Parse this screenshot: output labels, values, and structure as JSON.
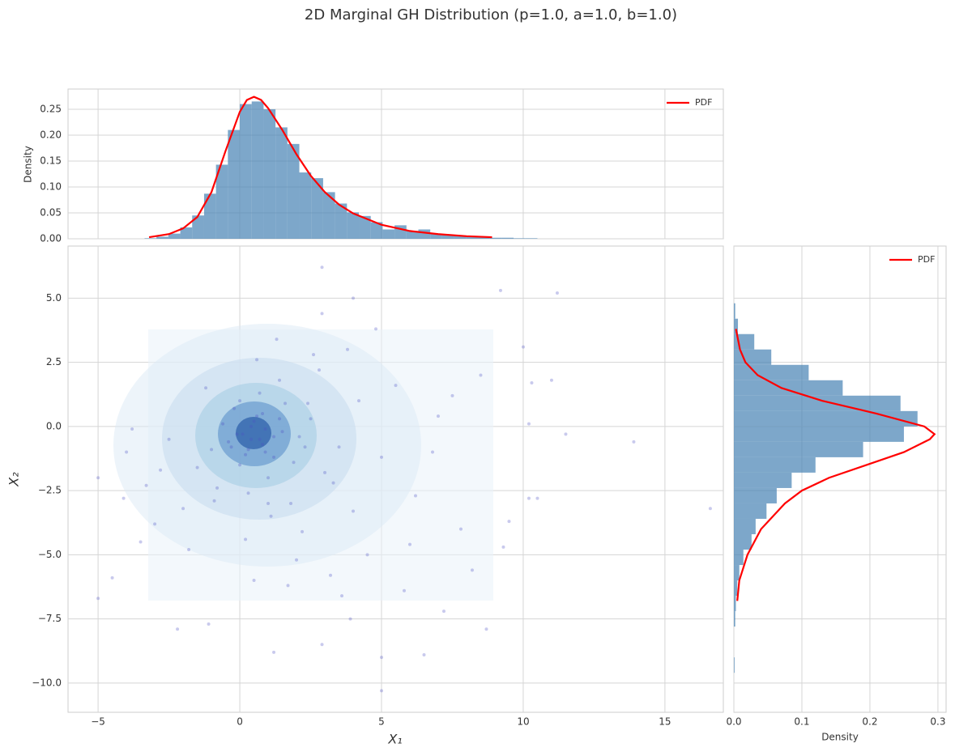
{
  "title": "2D Marginal GH Distribution (p=1.0, a=1.0, b=1.0)",
  "chart_data": [
    {
      "type": "scatter",
      "xlabel": "X₁",
      "ylabel": "X₂",
      "xlim": [
        -6.06,
        17.06
      ],
      "ylim": [
        -11.14,
        7.03
      ],
      "xticks": [
        {
          "value": -5,
          "label": "−5"
        },
        0,
        5,
        10,
        15
      ],
      "yticks": [
        {
          "value": 5,
          "label": "5.0"
        },
        2.5,
        {
          "value": 0,
          "label": "0.0"
        },
        {
          "value": -2.5,
          "label": "−2.5"
        },
        {
          "value": -5,
          "label": "−5.0"
        },
        {
          "value": -7.5,
          "label": "−7.5"
        },
        {
          "value": -10,
          "label": "−10.0"
        }
      ],
      "grid": true,
      "color": "#4b50c4",
      "x": [
        0.1,
        0.5,
        -0.3,
        0.8,
        1.2,
        0.4,
        -0.6,
        1.6,
        2.1,
        0.0,
        0.7,
        1.0,
        -1.0,
        2.5,
        3.0,
        1.4,
        0.3,
        -0.2,
        0.9,
        1.8,
        2.8,
        3.5,
        4.2,
        -1.5,
        0.6,
        1.1,
        -0.8,
        2.2,
        3.8,
        5.0,
        5.5,
        6.2,
        7.0,
        7.8,
        8.5,
        4.5,
        2.0,
        1.3,
        0.2,
        -1.2,
        -2.0,
        -2.5,
        -1.8,
        0.5,
        1.7,
        2.6,
        3.2,
        4.0,
        4.8,
        6.0,
        6.8,
        0.4,
        -0.4,
        1.5,
        0.9,
        0.6,
        0.2,
        1.9,
        2.4,
        3.3,
        -0.9,
        0.0,
        0.8,
        1.2,
        5.8,
        7.5,
        8.2,
        3.6,
        2.9,
        -2.8,
        -3.0,
        1.0,
        0.3,
        -0.1,
        0.7,
        1.4,
        2.3,
        -5.0,
        -5.0,
        -4.5,
        -4.0,
        -3.5,
        -3.3,
        2.9,
        4.0,
        9.2,
        11.2,
        10.0,
        10.3,
        11.0,
        10.2,
        11.5,
        13.9,
        16.6,
        10.5,
        10.2,
        9.5,
        9.3,
        5.0,
        5.0,
        6.5,
        2.9,
        1.2,
        -2.2,
        -1.1,
        8.7,
        7.2,
        3.9,
        -4.1,
        -3.8
      ],
      "y": [
        -0.3,
        0.2,
        -0.8,
        0.5,
        -1.2,
        -0.5,
        0.1,
        0.9,
        -0.4,
        -1.5,
        1.3,
        -2.0,
        -0.9,
        0.3,
        -1.8,
        1.8,
        -2.6,
        0.7,
        -0.1,
        -3.0,
        2.2,
        -0.8,
        1.0,
        -1.6,
        2.6,
        -3.5,
        -2.4,
        -4.1,
        3.0,
        -1.2,
        1.6,
        -2.7,
        0.4,
        -4.0,
        2.0,
        -5.0,
        -5.2,
        3.4,
        -4.4,
        1.5,
        -3.2,
        -0.5,
        -4.8,
        -6.0,
        -6.2,
        2.8,
        -5.8,
        -3.3,
        3.8,
        -4.6,
        -1.0,
        0.0,
        -0.6,
        -0.2,
        -1.0,
        0.4,
        -1.1,
        -1.4,
        0.9,
        -2.2,
        -2.9,
        1.0,
        -0.7,
        -0.4,
        -6.4,
        1.2,
        -5.6,
        -6.6,
        4.4,
        -1.7,
        -3.8,
        -3.0,
        -0.9,
        -0.3,
        -0.5,
        0.3,
        -0.8,
        -2.0,
        -6.7,
        -5.9,
        -1.0,
        -4.5,
        -2.3,
        6.2,
        5.0,
        5.3,
        5.2,
        3.1,
        1.7,
        1.8,
        0.1,
        -0.3,
        -0.6,
        -3.2,
        -2.8,
        -2.8,
        -3.7,
        -4.7,
        -9.0,
        -10.3,
        -8.9,
        -8.5,
        -8.8,
        -7.9,
        -7.7,
        -7.9,
        -7.2,
        -7.5,
        -2.8,
        -0.1
      ]
    },
    {
      "type": "histogram",
      "orientation": "vertical",
      "ylabel": "Density",
      "ylim": [
        0,
        0.289
      ],
      "yticks": [
        {
          "value": 0,
          "label": "0.00"
        },
        0.05,
        {
          "value": 0.1,
          "label": "0.10"
        },
        0.15,
        {
          "value": 0.2,
          "label": "0.20"
        },
        0.25
      ],
      "grid": true,
      "legend": "upper right",
      "color": "#4682b4",
      "bins": [
        -3.36,
        -2.94,
        -2.52,
        -2.1,
        -1.68,
        -1.26,
        -0.84,
        -0.42,
        0,
        0.42,
        0.84,
        1.26,
        1.68,
        2.1,
        2.52,
        2.94,
        3.36,
        3.78,
        4.2,
        4.62,
        5.04,
        5.46,
        5.88,
        6.3,
        6.72,
        7.14,
        7.56,
        7.98,
        8.4,
        8.82,
        9.24,
        9.66,
        10.08,
        10.5
      ],
      "values": [
        0.001,
        0.004,
        0.01,
        0.022,
        0.045,
        0.087,
        0.143,
        0.21,
        0.26,
        0.265,
        0.25,
        0.215,
        0.183,
        0.128,
        0.117,
        0.09,
        0.068,
        0.051,
        0.044,
        0.032,
        0.018,
        0.026,
        0.015,
        0.018,
        0.01,
        0.008,
        0.006,
        0.004,
        0.003,
        0.002,
        0.002,
        0.001,
        0.001
      ],
      "series": [
        {
          "name": "PDF",
          "color": "#ff0000",
          "x": [
            -3.2,
            -2.5,
            -2,
            -1.5,
            -1,
            -0.5,
            0,
            0.25,
            0.5,
            0.75,
            1,
            1.5,
            2,
            2.5,
            3,
            3.5,
            4,
            5,
            6,
            7,
            8,
            8.9
          ],
          "values": [
            0.003,
            0.009,
            0.02,
            0.042,
            0.09,
            0.17,
            0.245,
            0.268,
            0.274,
            0.268,
            0.252,
            0.21,
            0.163,
            0.122,
            0.09,
            0.066,
            0.049,
            0.027,
            0.015,
            0.009,
            0.005,
            0.003
          ]
        }
      ]
    },
    {
      "type": "histogram",
      "orientation": "horizontal",
      "xlabel": "Density",
      "xlim": [
        0,
        0.312
      ],
      "xticks": [
        {
          "value": 0,
          "label": "0.0"
        },
        0.1,
        0.2,
        0.3
      ],
      "grid": true,
      "legend": "upper right",
      "color": "#4682b4",
      "bins": [
        -9.6,
        -9.0,
        -8.4,
        -7.8,
        -7.2,
        -6.6,
        -6.0,
        -5.4,
        -4.8,
        -4.2,
        -3.6,
        -3.0,
        -2.4,
        -1.8,
        -1.2,
        -0.6,
        0,
        0.6,
        1.2,
        1.8,
        2.4,
        3.0,
        3.6,
        4.2,
        4.8
      ],
      "values": [
        0.001,
        0,
        0,
        0.002,
        0.003,
        0.005,
        0.008,
        0.014,
        0.026,
        0.032,
        0.048,
        0.063,
        0.085,
        0.12,
        0.19,
        0.25,
        0.27,
        0.245,
        0.16,
        0.11,
        0.055,
        0.03,
        0.006,
        0.002
      ],
      "series": [
        {
          "name": "PDF",
          "color": "#ff0000",
          "y": [
            -6.8,
            -6,
            -5,
            -4,
            -3,
            -2.5,
            -2,
            -1.5,
            -1,
            -0.5,
            -0.3,
            0,
            0.5,
            1,
            1.5,
            2,
            2.5,
            3,
            3.8
          ],
          "values": [
            0.005,
            0.008,
            0.02,
            0.04,
            0.075,
            0.1,
            0.14,
            0.195,
            0.25,
            0.288,
            0.295,
            0.28,
            0.21,
            0.13,
            0.07,
            0.035,
            0.017,
            0.009,
            0.003
          ]
        }
      ]
    }
  ]
}
